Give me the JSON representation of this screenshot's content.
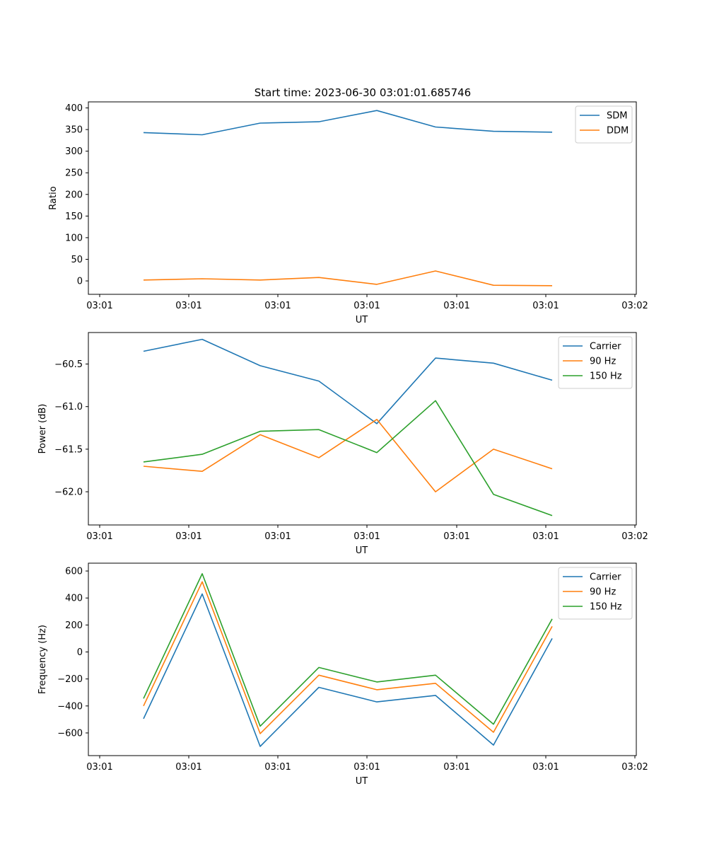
{
  "title": "Start time: 2023-06-30 03:01:01.685746",
  "chart_data": [
    {
      "type": "line",
      "xlabel": "UT",
      "ylabel": "Ratio",
      "x_tick_labels": [
        "03:01",
        "03:01",
        "03:01",
        "03:01",
        "03:01",
        "03:01",
        "03:02"
      ],
      "yticks": [
        0,
        50,
        100,
        150,
        200,
        250,
        300,
        350,
        400
      ],
      "ylim": [
        -31,
        414
      ],
      "legend_position": "upper-right",
      "series": [
        {
          "name": "SDM",
          "color": "#1f77b4",
          "values": [
            343,
            338,
            365,
            368,
            394,
            356,
            346,
            344
          ]
        },
        {
          "name": "DDM",
          "color": "#ff7f0e",
          "values": [
            2,
            5,
            2,
            8,
            -8,
            23,
            -10,
            -11
          ]
        }
      ]
    },
    {
      "type": "line",
      "xlabel": "UT",
      "ylabel": "Power (dB)",
      "x_tick_labels": [
        "03:01",
        "03:01",
        "03:01",
        "03:01",
        "03:01",
        "03:01",
        "03:02"
      ],
      "yticks": [
        -60.5,
        -61.0,
        -61.5,
        -62.0
      ],
      "ytick_labels": [
        "−60.5",
        "−61.0",
        "−61.5",
        "−62.0"
      ],
      "ylim": [
        -62.39,
        -60.13
      ],
      "legend_position": "upper-right",
      "series": [
        {
          "name": "Carrier",
          "color": "#1f77b4",
          "values": [
            -60.35,
            -60.21,
            -60.52,
            -60.7,
            -61.2,
            -60.43,
            -60.49,
            -60.69
          ]
        },
        {
          "name": "90 Hz",
          "color": "#ff7f0e",
          "values": [
            -61.7,
            -61.76,
            -61.33,
            -61.6,
            -61.15,
            -62.0,
            -61.5,
            -61.73
          ]
        },
        {
          "name": "150 Hz",
          "color": "#2ca02c",
          "values": [
            -61.65,
            -61.56,
            -61.29,
            -61.27,
            -61.54,
            -60.93,
            -62.03,
            -62.28
          ]
        }
      ]
    },
    {
      "type": "line",
      "xlabel": "UT",
      "ylabel": "Frequency (Hz)",
      "x_tick_labels": [
        "03:01",
        "03:01",
        "03:01",
        "03:01",
        "03:01",
        "03:01",
        "03:02"
      ],
      "yticks": [
        600,
        400,
        200,
        0,
        -200,
        -400,
        -600
      ],
      "ytick_labels": [
        "600",
        "400",
        "200",
        "0",
        "−200",
        "−400",
        "−600"
      ],
      "ylim": [
        -768,
        658
      ],
      "legend_position": "upper-right",
      "series": [
        {
          "name": "Carrier",
          "color": "#1f77b4",
          "values": [
            -495,
            430,
            -700,
            -262,
            -370,
            -322,
            -690,
            100
          ]
        },
        {
          "name": "90 Hz",
          "color": "#ff7f0e",
          "values": [
            -400,
            520,
            -605,
            -172,
            -280,
            -232,
            -595,
            190
          ]
        },
        {
          "name": "150 Hz",
          "color": "#2ca02c",
          "values": [
            -345,
            580,
            -550,
            -115,
            -222,
            -172,
            -535,
            245
          ]
        }
      ]
    }
  ]
}
